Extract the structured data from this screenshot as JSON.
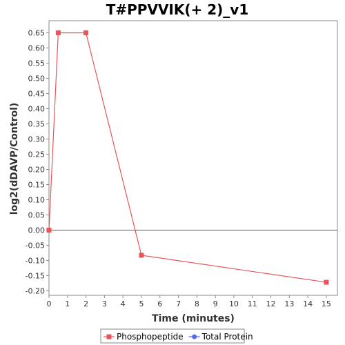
{
  "chart_data": {
    "type": "line",
    "title": "T#PPVVIK(+ 2)_v1",
    "xlabel": "Time (minutes)",
    "ylabel": "log2(dDAVP/Control)",
    "xlim": [
      0,
      15.6
    ],
    "ylim": [
      -0.215,
      0.69
    ],
    "x_ticks": [
      0,
      1,
      2,
      3,
      4,
      5,
      6,
      7,
      8,
      9,
      10,
      11,
      12,
      13,
      14,
      15
    ],
    "y_ticks": [
      0.65,
      0.6,
      0.55,
      0.5,
      0.45,
      0.4,
      0.35,
      0.3,
      0.25,
      0.2,
      0.15,
      0.1,
      0.05,
      0.0,
      -0.05,
      -0.1,
      -0.15,
      -0.2
    ],
    "y_tick_labels": [
      "0.65",
      "0.60",
      "0.55",
      "0.50",
      "0.45",
      "0.40",
      "0.35",
      "0.30",
      "0.25",
      "0.20",
      "0.15",
      "0.10",
      "0.05",
      "0.00",
      "-0.05",
      "-0.10",
      "-0.15",
      "-0.20"
    ],
    "zero_line": true,
    "grid": false,
    "legend_position": "bottom-center",
    "series": [
      {
        "name": "Phosphopeptide",
        "color": "#e8555a",
        "marker": "square",
        "x": [
          0,
          0.5,
          2,
          5,
          15
        ],
        "y": [
          0.0,
          0.65,
          0.65,
          -0.083,
          -0.172
        ]
      }
    ],
    "legend": [
      {
        "label": "Phosphopeptide",
        "color": "#e8555a",
        "marker": "square"
      },
      {
        "label": "Total Protein",
        "color": "#5a6be8",
        "marker": "circle"
      }
    ]
  }
}
